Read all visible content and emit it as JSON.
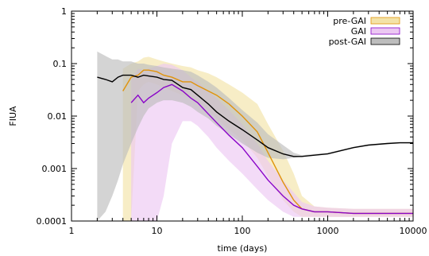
{
  "chart_data": {
    "type": "line",
    "xlabel": "time (days)",
    "ylabel": "FIUA",
    "xscale": "log",
    "yscale": "log",
    "xlim": [
      1,
      10000
    ],
    "ylim": [
      0.0001,
      1
    ],
    "x_ticks": [
      {
        "value": 1,
        "label": "1"
      },
      {
        "value": 10,
        "label": "10"
      },
      {
        "value": 100,
        "label": "100"
      },
      {
        "value": 1000,
        "label": "1000"
      },
      {
        "value": 10000,
        "label": "10000"
      }
    ],
    "y_ticks": [
      {
        "value": 0.0001,
        "label": "0.0001"
      },
      {
        "value": 0.001,
        "label": "0.001"
      },
      {
        "value": 0.01,
        "label": "0.01"
      },
      {
        "value": 0.1,
        "label": "0.1"
      },
      {
        "value": 1,
        "label": "1"
      }
    ],
    "legend_position": "top-right",
    "series": [
      {
        "name": "pre-GAI",
        "line_color": "#e0930b",
        "band_color": "#f3e3a8",
        "x": [
          4,
          5,
          6,
          7,
          8,
          10,
          12,
          15,
          20,
          25,
          30,
          40,
          50,
          70,
          100,
          150,
          200,
          300,
          400,
          500,
          700,
          1000,
          2000,
          3000,
          5000,
          7000,
          10000
        ],
        "y": [
          0.03,
          0.055,
          0.06,
          0.075,
          0.075,
          0.07,
          0.06,
          0.055,
          0.045,
          0.045,
          0.038,
          0.03,
          0.025,
          0.017,
          0.01,
          0.005,
          0.002,
          0.00055,
          0.00025,
          0.00017,
          0.00015,
          0.00015,
          0.00014,
          0.00014,
          0.00014,
          0.00014,
          0.00014
        ],
        "y_low": [
          0.0001,
          0.0001,
          0.03,
          0.04,
          0.045,
          0.04,
          0.035,
          0.03,
          0.025,
          0.022,
          0.018,
          0.013,
          0.009,
          0.0055,
          0.0035,
          0.0016,
          0.0007,
          0.00025,
          0.00015,
          0.00012,
          0.00012,
          0.00012,
          0.00012,
          0.00012,
          0.00012,
          0.00012,
          0.00012
        ],
        "y_high": [
          0.08,
          0.1,
          0.11,
          0.13,
          0.135,
          0.12,
          0.11,
          0.1,
          0.09,
          0.085,
          0.075,
          0.065,
          0.055,
          0.04,
          0.028,
          0.017,
          0.007,
          0.0022,
          0.0008,
          0.0003,
          0.00019,
          0.00018,
          0.00017,
          0.00017,
          0.00017,
          0.00017,
          0.00017
        ]
      },
      {
        "name": "GAI",
        "line_color": "#8a05c8",
        "band_color": "#ecc8f2",
        "x": [
          5,
          6,
          7,
          8,
          10,
          12,
          15,
          20,
          25,
          30,
          40,
          50,
          70,
          100,
          150,
          200,
          300,
          400,
          500,
          700,
          1000,
          2000,
          3000,
          5000,
          7000,
          10000
        ],
        "y": [
          0.018,
          0.025,
          0.018,
          0.022,
          0.028,
          0.035,
          0.04,
          0.03,
          0.022,
          0.018,
          0.011,
          0.0075,
          0.0043,
          0.0025,
          0.0011,
          0.0006,
          0.0003,
          0.0002,
          0.00017,
          0.00015,
          0.00015,
          0.00014,
          0.00014,
          0.00014,
          0.00014,
          0.00014
        ],
        "y_low": [
          0.0001,
          0.0001,
          0.0001,
          0.0001,
          0.0001,
          0.0003,
          0.003,
          0.008,
          0.008,
          0.0065,
          0.004,
          0.0025,
          0.0014,
          0.0008,
          0.0004,
          0.00025,
          0.00015,
          0.00012,
          0.00012,
          0.00012,
          0.00012,
          0.00012,
          0.00012,
          0.00012,
          0.00012,
          0.00012
        ],
        "y_high": [
          0.05,
          0.08,
          0.075,
          0.08,
          0.09,
          0.1,
          0.095,
          0.075,
          0.055,
          0.045,
          0.03,
          0.022,
          0.013,
          0.007,
          0.003,
          0.0014,
          0.0006,
          0.00035,
          0.00023,
          0.00019,
          0.00018,
          0.00017,
          0.00017,
          0.00017,
          0.00017,
          0.00017
        ]
      },
      {
        "name": "post-GAI",
        "line_color": "#000000",
        "band_color": "#bdbdbd",
        "x": [
          2,
          2.5,
          3,
          3.5,
          4,
          5,
          6,
          7,
          8,
          10,
          12,
          15,
          20,
          25,
          30,
          40,
          50,
          70,
          100,
          150,
          200,
          300,
          400,
          500,
          700,
          1000,
          2000,
          3000,
          5000,
          7000,
          10000
        ],
        "y": [
          0.055,
          0.05,
          0.045,
          0.055,
          0.06,
          0.06,
          0.055,
          0.06,
          0.058,
          0.055,
          0.05,
          0.048,
          0.035,
          0.032,
          0.025,
          0.017,
          0.012,
          0.008,
          0.0055,
          0.0035,
          0.0025,
          0.0019,
          0.0017,
          0.0017,
          0.0018,
          0.0019,
          0.0025,
          0.0028,
          0.003,
          0.0031,
          0.0031
        ],
        "y_low": [
          0.0001,
          0.00015,
          0.0003,
          0.0006,
          0.0012,
          0.003,
          0.006,
          0.01,
          0.014,
          0.018,
          0.02,
          0.02,
          0.018,
          0.015,
          0.012,
          0.009,
          0.0065,
          0.0045,
          0.003,
          0.002,
          0.0016,
          0.0015,
          0.0016,
          0.0017,
          0.0018,
          0.0019,
          0.0025,
          0.0028,
          0.0029,
          0.003,
          0.003
        ],
        "y_high": [
          0.17,
          0.14,
          0.12,
          0.12,
          0.11,
          0.11,
          0.1,
          0.1,
          0.095,
          0.09,
          0.085,
          0.08,
          0.075,
          0.07,
          0.06,
          0.045,
          0.035,
          0.022,
          0.013,
          0.0075,
          0.0045,
          0.0028,
          0.002,
          0.0018,
          0.0019,
          0.002,
          0.0026,
          0.0029,
          0.0031,
          0.0032,
          0.0032
        ]
      }
    ]
  }
}
